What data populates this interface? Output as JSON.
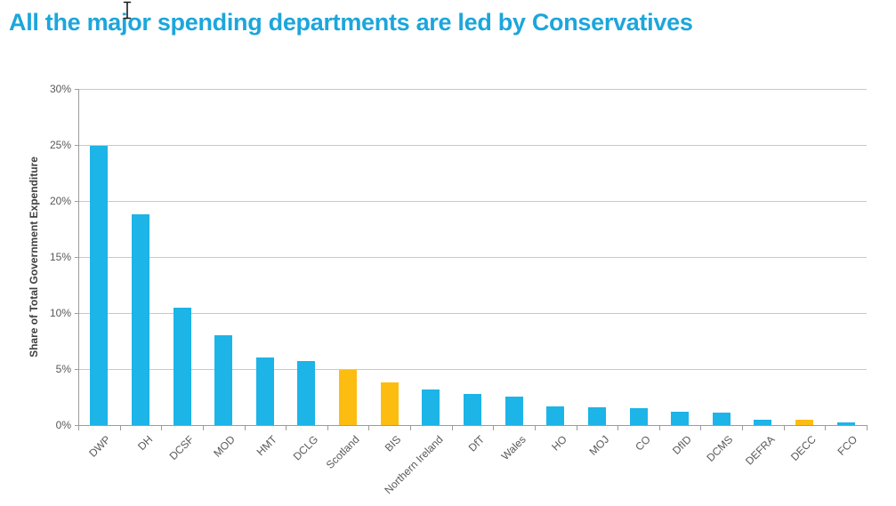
{
  "page": {
    "title": "All the major spending departments are led by Conservatives",
    "title_color": "#1CA6DB",
    "cursor_icon": "text-ibeam-cursor",
    "background": "#ffffff"
  },
  "chart_data": {
    "type": "bar",
    "title": "All the major spending departments are led by Conservatives",
    "xlabel": "",
    "ylabel": "Share of Total Government Expenditure",
    "ylim": [
      0,
      30
    ],
    "ytick_step": 5,
    "yticks": [
      "0%",
      "5%",
      "10%",
      "15%",
      "20%",
      "25%",
      "30%"
    ],
    "grid": true,
    "legend": "none",
    "categories": [
      "DWP",
      "DH",
      "DCSF",
      "MOD",
      "HMT",
      "DCLG",
      "Scotland",
      "BIS",
      "Northern Ireland",
      "DfT",
      "Wales",
      "HO",
      "MOJ",
      "CO",
      "DfID",
      "DCMS",
      "DEFRA",
      "DECC",
      "FCO"
    ],
    "values": [
      24.9,
      18.8,
      10.5,
      8.0,
      6.0,
      5.7,
      4.9,
      3.8,
      3.2,
      2.8,
      2.5,
      1.7,
      1.6,
      1.5,
      1.2,
      1.1,
      0.45,
      0.5,
      0.25
    ],
    "units": "percent of total government expenditure",
    "highlighted_categories": [
      "Scotland",
      "BIS",
      "DECC"
    ],
    "colors": {
      "default": "#1DB4E7",
      "highlight": "#FDBD10"
    },
    "color_meaning": {
      "default": "Conservative-led department",
      "highlight": "non-Conservative-led"
    }
  }
}
